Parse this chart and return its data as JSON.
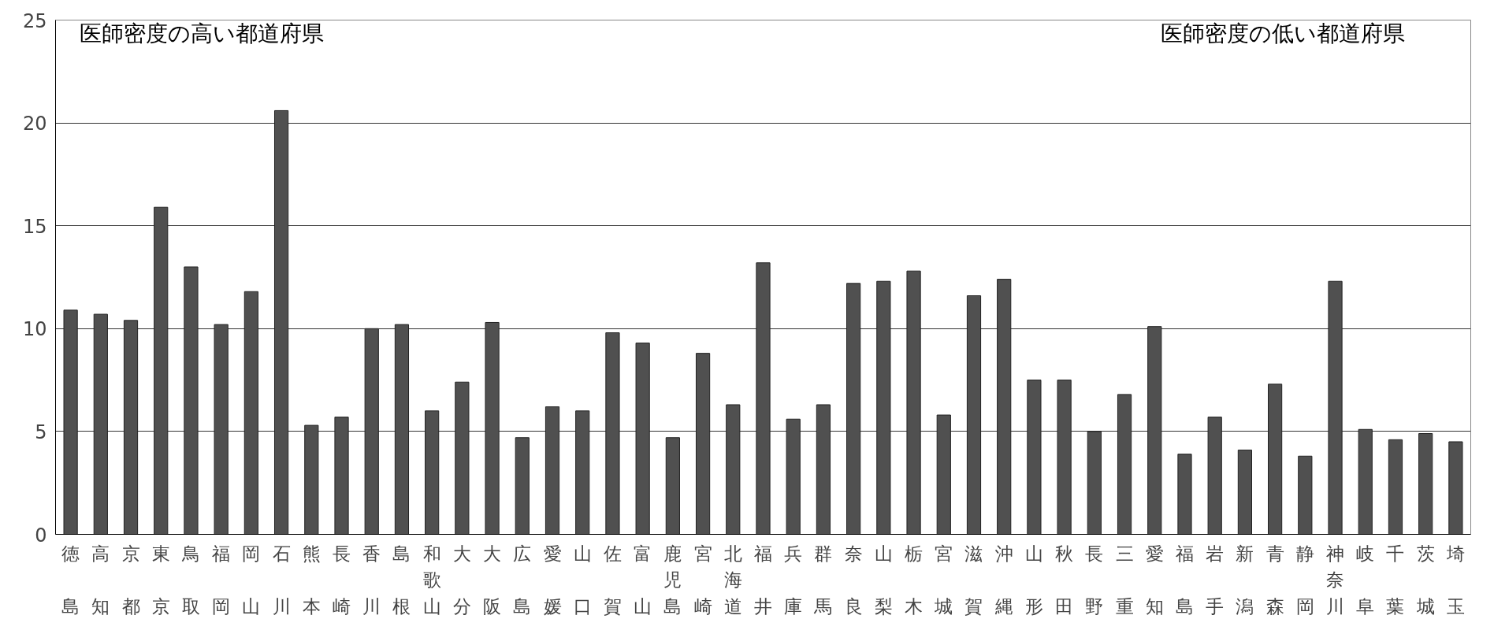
{
  "chart_data": {
    "type": "bar",
    "categories": [
      "徳島",
      "高知",
      "京都",
      "東京",
      "鳥取",
      "福岡",
      "岡山",
      "石川",
      "熊本",
      "長崎",
      "香川",
      "島根",
      "和歌山",
      "大分",
      "大阪",
      "広島",
      "愛媛",
      "山口",
      "佐賀",
      "富山",
      "鹿児島",
      "宮崎",
      "北海道",
      "福井",
      "兵庫",
      "群馬",
      "奈良",
      "山梨",
      "栃木",
      "宮城",
      "滋賀",
      "沖縄",
      "山形",
      "秋田",
      "長野",
      "三重",
      "愛知",
      "福島",
      "岩手",
      "新潟",
      "青森",
      "静岡",
      "神奈川",
      "岐阜",
      "千葉",
      "茨城",
      "埼玉"
    ],
    "values": [
      10.9,
      10.7,
      10.4,
      15.9,
      13.0,
      10.2,
      11.8,
      20.6,
      5.3,
      5.7,
      10.0,
      10.2,
      6.0,
      7.4,
      10.3,
      4.7,
      6.2,
      6.0,
      9.8,
      9.3,
      4.7,
      8.8,
      6.3,
      13.2,
      5.6,
      6.3,
      12.2,
      12.3,
      12.8,
      5.8,
      11.6,
      12.4,
      7.5,
      7.5,
      5.0,
      6.8,
      10.1,
      3.9,
      5.7,
      4.1,
      7.3,
      3.8,
      12.3,
      5.1,
      4.6,
      4.9,
      4.5
    ],
    "color": "#505050",
    "ylim": [
      0,
      25
    ],
    "yticks": [
      0,
      5,
      10,
      15,
      20,
      25
    ],
    "grid": "y",
    "annotations": [
      "医師密度の高い都道府県",
      "医師密度の低い都道府県"
    ]
  }
}
